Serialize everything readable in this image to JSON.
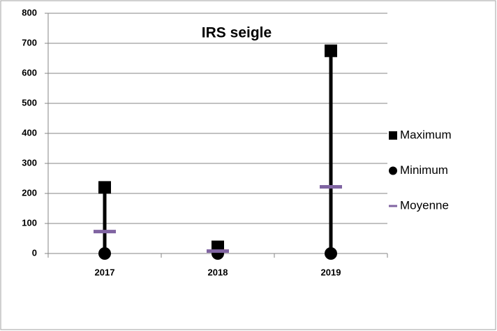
{
  "chart_data": {
    "type": "high-low",
    "title": "IRS seigle",
    "categories": [
      "2017",
      "2018",
      "2019"
    ],
    "series": [
      {
        "name": "Maximum",
        "color": "#000000",
        "marker": "square",
        "values": [
          220,
          22,
          675
        ]
      },
      {
        "name": "Minimum",
        "color": "#000000",
        "marker": "circle",
        "values": [
          0,
          0,
          0
        ]
      },
      {
        "name": "Moyenne",
        "color": "#8064a2",
        "marker": "dash",
        "values": [
          73,
          8,
          222
        ]
      }
    ],
    "high_low_lines": true,
    "ylim": [
      0,
      800
    ],
    "yticks": [
      0,
      100,
      200,
      300,
      400,
      500,
      600,
      700,
      800
    ],
    "grid": true,
    "legend": "right"
  }
}
